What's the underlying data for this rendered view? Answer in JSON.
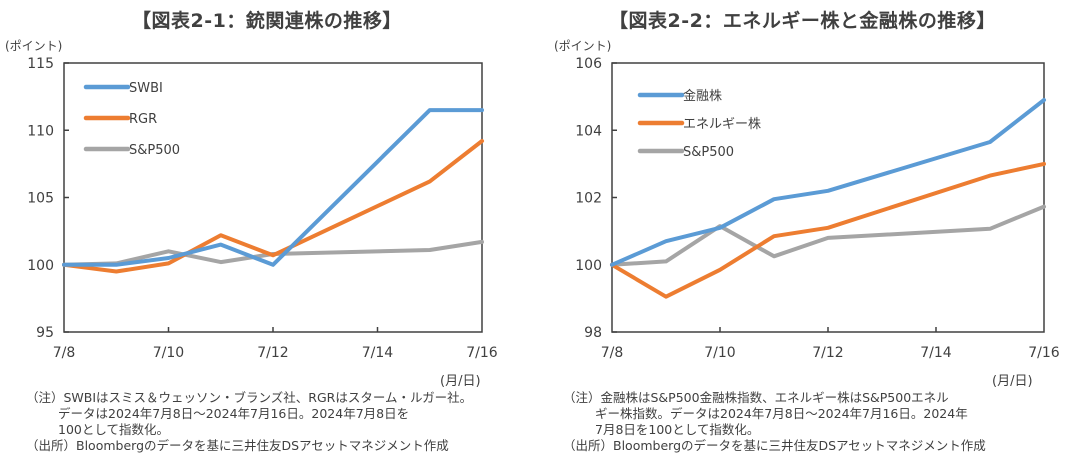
{
  "chart_data": [
    {
      "id": "left",
      "type": "line",
      "title": "【図表2-1：銃関連株の推移】",
      "ylabel": "(ポイント)",
      "xlabel": "(月/日)",
      "x": [
        "7/8",
        "7/9",
        "7/10",
        "7/11",
        "7/12",
        "7/15",
        "7/16"
      ],
      "x_day_index": [
        0,
        1,
        2,
        3,
        4,
        7,
        8
      ],
      "xticks": [
        "7/8",
        "7/10",
        "7/12",
        "7/14",
        "7/16"
      ],
      "xtick_day_index": [
        0,
        2,
        4,
        6,
        8
      ],
      "ylim": [
        95,
        115
      ],
      "yticks": [
        95,
        100,
        105,
        110,
        115
      ],
      "grid": false,
      "legend_position": "top-left",
      "series": [
        {
          "name": "SWBI",
          "color": "#5B9BD5",
          "values": [
            100,
            100.0,
            100.5,
            101.5,
            100.0,
            111.5,
            111.5
          ]
        },
        {
          "name": "RGR",
          "color": "#ED7D31",
          "values": [
            100,
            99.5,
            100.1,
            102.2,
            100.7,
            106.2,
            109.2
          ]
        },
        {
          "name": "S&P500",
          "color": "#A5A5A5",
          "values": [
            100,
            100.1,
            101.0,
            100.2,
            100.8,
            101.1,
            101.7
          ]
        }
      ],
      "notes": [
        "（注）SWBIはスミス＆ウェッソン・ブランズ社、RGRはスターム・ルガー社。",
        "データは2024年7月8日～2024年7月16日。2024年7月8日を",
        "100として指数化。",
        "（出所）Bloombergのデータを基に三井住友DSアセットマネジメント作成"
      ]
    },
    {
      "id": "right",
      "type": "line",
      "title": "【図表2-2：エネルギー株と金融株の推移】",
      "ylabel": "(ポイント)",
      "xlabel": "(月/日)",
      "x": [
        "7/8",
        "7/9",
        "7/10",
        "7/11",
        "7/12",
        "7/15",
        "7/16"
      ],
      "x_day_index": [
        0,
        1,
        2,
        3,
        4,
        7,
        8
      ],
      "xticks": [
        "7/8",
        "7/10",
        "7/12",
        "7/14",
        "7/16"
      ],
      "xtick_day_index": [
        0,
        2,
        4,
        6,
        8
      ],
      "ylim": [
        98,
        106
      ],
      "yticks": [
        98,
        100,
        102,
        104,
        106
      ],
      "grid": false,
      "legend_position": "top-left",
      "series": [
        {
          "name": "金融株",
          "color": "#5B9BD5",
          "values": [
            100,
            100.7,
            101.1,
            101.95,
            102.2,
            103.65,
            104.9
          ]
        },
        {
          "name": "エネルギー株",
          "color": "#ED7D31",
          "values": [
            100,
            99.05,
            99.85,
            100.85,
            101.1,
            102.65,
            103.0
          ]
        },
        {
          "name": "S&P500",
          "color": "#A5A5A5",
          "values": [
            100,
            100.1,
            101.15,
            100.25,
            100.8,
            101.07,
            101.73
          ]
        }
      ],
      "notes": [
        "（注）金融株はS&P500金融株指数、エネルギー株はS&P500エネル",
        "ギー株指数。データは2024年7月8日～2024年7月16日。2024年",
        "7月8日を100として指数化。",
        "（出所）Bloombergのデータを基に三井住友DSアセットマネジメント作成"
      ]
    }
  ]
}
